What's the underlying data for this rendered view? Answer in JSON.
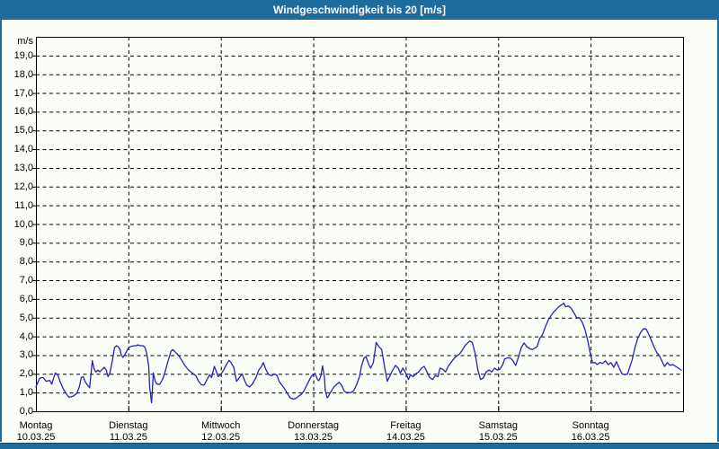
{
  "window": {
    "title": "Windgeschwindigkeit bis 20 [m/s]"
  },
  "colors": {
    "frame_blue": "#1e6c9e",
    "frame_dark_line": "#0e4b77",
    "background": "#fbfdf7",
    "grid": "#000000",
    "line": "#2323bd",
    "title_text": "#ffffff",
    "label_text": "#000000"
  },
  "chart_data": {
    "type": "line",
    "title": "Windgeschwindigkeit bis 20 [m/s]",
    "y_unit": "m/s",
    "ylim": [
      0,
      20
    ],
    "ytick_interval": 1.0,
    "ytick_labels": [
      "19,0",
      "18,0",
      "17,0",
      "16,0",
      "15,0",
      "14,0",
      "13,0",
      "12,0",
      "11,0",
      "10,0",
      "9,0",
      "8,0",
      "7,0",
      "6,0",
      "5,0",
      "4,0",
      "3,0",
      "2,0",
      "1,0",
      "0,0"
    ],
    "grid_style": "dashed",
    "legend": "none",
    "x_days": [
      {
        "name": "Montag",
        "date": "10.03.25"
      },
      {
        "name": "Dienstag",
        "date": "11.03.25"
      },
      {
        "name": "Mittwoch",
        "date": "12.03.25"
      },
      {
        "name": "Donnerstag",
        "date": "13.03.25"
      },
      {
        "name": "Freitag",
        "date": "14.03.25"
      },
      {
        "name": "Samstag",
        "date": "15.03.25"
      },
      {
        "name": "Sonntag",
        "date": "16.03.25"
      }
    ],
    "series": [
      {
        "name": "Windgeschwindigkeit",
        "unit": "m/s",
        "x_unit": "days since Montag 10.03.25 00:00",
        "points": [
          [
            0.0,
            1.3
          ],
          [
            0.02,
            1.55
          ],
          [
            0.04,
            1.75
          ],
          [
            0.06,
            1.8
          ],
          [
            0.08,
            1.8
          ],
          [
            0.11,
            1.6
          ],
          [
            0.15,
            1.65
          ],
          [
            0.17,
            1.45
          ],
          [
            0.21,
            2.05
          ],
          [
            0.24,
            1.9
          ],
          [
            0.26,
            1.6
          ],
          [
            0.3,
            1.15
          ],
          [
            0.34,
            0.85
          ],
          [
            0.36,
            0.75
          ],
          [
            0.4,
            0.8
          ],
          [
            0.44,
            0.95
          ],
          [
            0.47,
            1.3
          ],
          [
            0.49,
            1.8
          ],
          [
            0.51,
            1.85
          ],
          [
            0.53,
            1.6
          ],
          [
            0.55,
            1.45
          ],
          [
            0.58,
            1.25
          ],
          [
            0.6,
            2.2
          ],
          [
            0.61,
            2.7
          ],
          [
            0.63,
            2.25
          ],
          [
            0.65,
            2.1
          ],
          [
            0.67,
            2.2
          ],
          [
            0.69,
            2.1
          ],
          [
            0.71,
            2.2
          ],
          [
            0.74,
            2.35
          ],
          [
            0.76,
            2.2
          ],
          [
            0.78,
            1.85
          ],
          [
            0.8,
            2.05
          ],
          [
            0.83,
            2.8
          ],
          [
            0.85,
            3.4
          ],
          [
            0.87,
            3.5
          ],
          [
            0.89,
            3.45
          ],
          [
            0.91,
            3.3
          ],
          [
            0.92,
            3.05
          ],
          [
            0.94,
            2.88
          ],
          [
            0.96,
            3.0
          ],
          [
            0.97,
            3.1
          ],
          [
            0.99,
            3.3
          ],
          [
            1.01,
            3.42
          ],
          [
            1.03,
            3.47
          ],
          [
            1.06,
            3.5
          ],
          [
            1.09,
            3.5
          ],
          [
            1.1,
            3.55
          ],
          [
            1.13,
            3.5
          ],
          [
            1.16,
            3.5
          ],
          [
            1.18,
            3.4
          ],
          [
            1.2,
            3.05
          ],
          [
            1.22,
            2.4
          ],
          [
            1.23,
            1.3
          ],
          [
            1.25,
            0.45
          ],
          [
            1.26,
            1.2
          ],
          [
            1.27,
            2.05
          ],
          [
            1.29,
            1.6
          ],
          [
            1.31,
            1.45
          ],
          [
            1.34,
            1.45
          ],
          [
            1.37,
            1.7
          ],
          [
            1.39,
            2.0
          ],
          [
            1.43,
            2.7
          ],
          [
            1.46,
            3.2
          ],
          [
            1.48,
            3.3
          ],
          [
            1.51,
            3.15
          ],
          [
            1.54,
            3.0
          ],
          [
            1.58,
            2.7
          ],
          [
            1.61,
            2.45
          ],
          [
            1.65,
            2.2
          ],
          [
            1.69,
            2.05
          ],
          [
            1.73,
            1.9
          ],
          [
            1.76,
            1.6
          ],
          [
            1.79,
            1.42
          ],
          [
            1.82,
            1.4
          ],
          [
            1.85,
            1.7
          ],
          [
            1.88,
            1.95
          ],
          [
            1.9,
            1.8
          ],
          [
            1.93,
            2.4
          ],
          [
            1.95,
            2.15
          ],
          [
            1.97,
            1.85
          ],
          [
            2.0,
            1.95
          ],
          [
            2.03,
            2.2
          ],
          [
            2.06,
            2.5
          ],
          [
            2.09,
            2.72
          ],
          [
            2.11,
            2.6
          ],
          [
            2.14,
            2.35
          ],
          [
            2.17,
            1.6
          ],
          [
            2.2,
            1.8
          ],
          [
            2.23,
            2.0
          ],
          [
            2.26,
            1.6
          ],
          [
            2.28,
            1.4
          ],
          [
            2.31,
            1.3
          ],
          [
            2.34,
            1.45
          ],
          [
            2.38,
            1.8
          ],
          [
            2.41,
            2.2
          ],
          [
            2.44,
            2.4
          ],
          [
            2.46,
            2.6
          ],
          [
            2.49,
            2.2
          ],
          [
            2.52,
            1.95
          ],
          [
            2.55,
            1.9
          ],
          [
            2.58,
            2.0
          ],
          [
            2.61,
            1.9
          ],
          [
            2.63,
            1.6
          ],
          [
            2.66,
            1.4
          ],
          [
            2.69,
            1.2
          ],
          [
            2.72,
            0.95
          ],
          [
            2.75,
            0.72
          ],
          [
            2.78,
            0.65
          ],
          [
            2.81,
            0.68
          ],
          [
            2.84,
            0.8
          ],
          [
            2.87,
            0.9
          ],
          [
            2.9,
            1.1
          ],
          [
            2.93,
            1.4
          ],
          [
            2.96,
            1.7
          ],
          [
            2.98,
            1.88
          ],
          [
            3.0,
            1.95
          ],
          [
            3.02,
            2.03
          ],
          [
            3.04,
            1.76
          ],
          [
            3.06,
            1.63
          ],
          [
            3.08,
            1.84
          ],
          [
            3.1,
            2.43
          ],
          [
            3.12,
            1.84
          ],
          [
            3.13,
            1.12
          ],
          [
            3.15,
            0.72
          ],
          [
            3.16,
            0.77
          ],
          [
            3.19,
            1.04
          ],
          [
            3.22,
            1.28
          ],
          [
            3.26,
            1.47
          ],
          [
            3.28,
            1.55
          ],
          [
            3.31,
            1.36
          ],
          [
            3.33,
            1.12
          ],
          [
            3.35,
            1.01
          ],
          [
            3.38,
            1.0
          ],
          [
            3.41,
            1.0
          ],
          [
            3.44,
            1.12
          ],
          [
            3.47,
            1.44
          ],
          [
            3.5,
            1.84
          ],
          [
            3.52,
            2.4
          ],
          [
            3.55,
            2.85
          ],
          [
            3.57,
            2.92
          ],
          [
            3.6,
            2.5
          ],
          [
            3.62,
            2.3
          ],
          [
            3.65,
            2.6
          ],
          [
            3.67,
            3.3
          ],
          [
            3.68,
            3.68
          ],
          [
            3.71,
            3.45
          ],
          [
            3.74,
            3.3
          ],
          [
            3.77,
            2.4
          ],
          [
            3.8,
            1.6
          ],
          [
            3.83,
            1.9
          ],
          [
            3.86,
            2.2
          ],
          [
            3.89,
            2.45
          ],
          [
            3.92,
            2.3
          ],
          [
            3.94,
            2.05
          ],
          [
            3.97,
            2.3
          ],
          [
            4.0,
            2.05
          ],
          [
            4.03,
            1.7
          ],
          [
            4.05,
            1.95
          ],
          [
            4.08,
            1.85
          ],
          [
            4.11,
            2.0
          ],
          [
            4.14,
            2.1
          ],
          [
            4.17,
            2.3
          ],
          [
            4.2,
            2.4
          ],
          [
            4.23,
            2.1
          ],
          [
            4.26,
            1.8
          ],
          [
            4.29,
            1.7
          ],
          [
            4.32,
            1.9
          ],
          [
            4.35,
            1.85
          ],
          [
            4.37,
            2.3
          ],
          [
            4.4,
            2.25
          ],
          [
            4.43,
            2.1
          ],
          [
            4.46,
            2.4
          ],
          [
            4.49,
            2.6
          ],
          [
            4.52,
            2.8
          ],
          [
            4.55,
            2.95
          ],
          [
            4.58,
            3.05
          ],
          [
            4.61,
            3.25
          ],
          [
            4.64,
            3.5
          ],
          [
            4.67,
            3.65
          ],
          [
            4.69,
            3.75
          ],
          [
            4.72,
            3.68
          ],
          [
            4.75,
            3.1
          ],
          [
            4.78,
            2.2
          ],
          [
            4.81,
            1.7
          ],
          [
            4.84,
            1.78
          ],
          [
            4.87,
            2.1
          ],
          [
            4.9,
            2.2
          ],
          [
            4.93,
            2.1
          ],
          [
            4.96,
            2.3
          ],
          [
            4.99,
            2.2
          ],
          [
            5.02,
            2.25
          ],
          [
            5.05,
            2.5
          ],
          [
            5.07,
            2.8
          ],
          [
            5.1,
            2.85
          ],
          [
            5.13,
            2.85
          ],
          [
            5.16,
            2.7
          ],
          [
            5.19,
            2.45
          ],
          [
            5.22,
            2.9
          ],
          [
            5.25,
            3.4
          ],
          [
            5.28,
            3.65
          ],
          [
            5.31,
            3.45
          ],
          [
            5.34,
            3.35
          ],
          [
            5.37,
            3.3
          ],
          [
            5.39,
            3.35
          ],
          [
            5.42,
            3.45
          ],
          [
            5.45,
            3.9
          ],
          [
            5.48,
            4.1
          ],
          [
            5.51,
            4.5
          ],
          [
            5.54,
            4.85
          ],
          [
            5.57,
            5.1
          ],
          [
            5.6,
            5.3
          ],
          [
            5.63,
            5.45
          ],
          [
            5.66,
            5.6
          ],
          [
            5.69,
            5.7
          ],
          [
            5.71,
            5.78
          ],
          [
            5.73,
            5.58
          ],
          [
            5.76,
            5.62
          ],
          [
            5.79,
            5.5
          ],
          [
            5.82,
            5.25
          ],
          [
            5.85,
            5.0
          ],
          [
            5.88,
            5.0
          ],
          [
            5.91,
            4.75
          ],
          [
            5.94,
            4.35
          ],
          [
            5.97,
            3.75
          ],
          [
            5.99,
            3.25
          ],
          [
            6.02,
            2.6
          ],
          [
            6.05,
            2.6
          ],
          [
            6.07,
            2.5
          ],
          [
            6.1,
            2.6
          ],
          [
            6.13,
            2.55
          ],
          [
            6.16,
            2.7
          ],
          [
            6.19,
            2.5
          ],
          [
            6.22,
            2.6
          ],
          [
            6.25,
            2.35
          ],
          [
            6.28,
            2.65
          ],
          [
            6.31,
            2.3
          ],
          [
            6.34,
            2.0
          ],
          [
            6.37,
            1.95
          ],
          [
            6.4,
            2.0
          ],
          [
            6.42,
            2.3
          ],
          [
            6.45,
            2.75
          ],
          [
            6.48,
            3.4
          ],
          [
            6.51,
            3.9
          ],
          [
            6.54,
            4.2
          ],
          [
            6.57,
            4.4
          ],
          [
            6.6,
            4.4
          ],
          [
            6.63,
            4.1
          ],
          [
            6.66,
            3.75
          ],
          [
            6.69,
            3.4
          ],
          [
            6.72,
            3.1
          ],
          [
            6.74,
            3.0
          ],
          [
            6.77,
            2.7
          ],
          [
            6.8,
            2.4
          ],
          [
            6.83,
            2.6
          ],
          [
            6.86,
            2.45
          ],
          [
            6.89,
            2.5
          ],
          [
            6.92,
            2.4
          ],
          [
            6.95,
            2.3
          ],
          [
            6.98,
            2.2
          ]
        ]
      }
    ]
  }
}
